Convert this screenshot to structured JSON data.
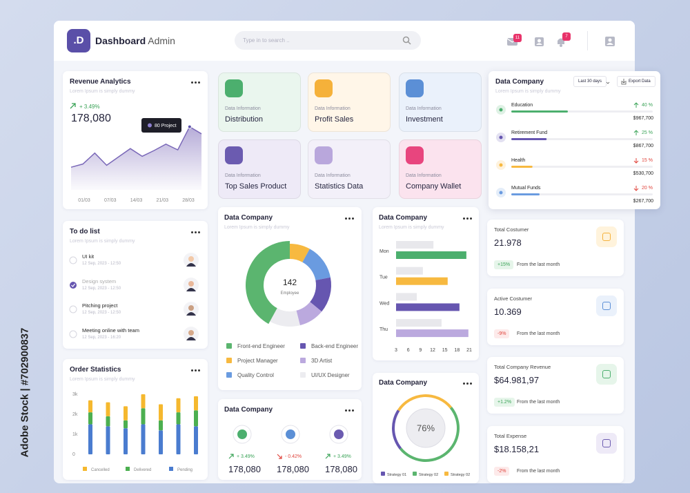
{
  "watermark": "Adobe Stock | #702900837",
  "header": {
    "logo": ".D",
    "title_bold": "Dashboard",
    "title_rest": "Admin",
    "search_placeholder": "Type in to search ..",
    "mail_badge": "11",
    "bell_badge": "7"
  },
  "revenue": {
    "type": "line",
    "title": "Revenue Analytics",
    "subtitle": "Lorem Ipsum is simply dummy",
    "change": "+ 3.49%",
    "value": "178,080",
    "tooltip": "80 Project",
    "categories": [
      "01/03",
      "07/03",
      "14/03",
      "21/03",
      "28/03"
    ],
    "values": [
      31,
      36,
      53,
      34,
      47,
      60,
      48,
      57,
      67,
      58,
      94,
      83
    ],
    "ylim": [
      0,
      100
    ],
    "color": "#7a68b8"
  },
  "tiles": [
    {
      "label": "Data Information",
      "name": "Distribution",
      "color": "#4caf6e",
      "bg": "#eaf6ee"
    },
    {
      "label": "Data Information",
      "name": "Profit Sales",
      "color": "#f5b13a",
      "bg": "#fff6e8"
    },
    {
      "label": "Data Information",
      "name": "Investment",
      "color": "#5b8fd6",
      "bg": "#eaf1fb"
    },
    {
      "label": "Data Information",
      "name": "Top Sales Product",
      "color": "#6b5bb0",
      "bg": "#eeeaf7"
    },
    {
      "label": "Data Information",
      "name": "Statistics Data",
      "color": "#b9a7dc",
      "bg": "#f3f0f9"
    },
    {
      "label": "Data Information",
      "name": "Company Wallet",
      "color": "#e8457e",
      "bg": "#fbe3ee"
    }
  ],
  "todo": {
    "title": "To do list",
    "subtitle": "Lorem Ipsum is simply dummy",
    "items": [
      {
        "title": "UI kit",
        "date": "12 Sep, 2023 - 12:50",
        "done": false
      },
      {
        "title": "Design system",
        "date": "12 Sep, 2023 - 12:50",
        "done": true
      },
      {
        "title": "Pitching project",
        "date": "12 Sep, 2023 - 12:50",
        "done": false
      },
      {
        "title": "Meeting online with team",
        "date": "12 Sep, 2023 - 16:20",
        "done": false
      }
    ]
  },
  "orders": {
    "type": "bar",
    "stacked": true,
    "title": "Order Statistics",
    "subtitle": "Lorem Ipsum is simply dummy",
    "ylim": [
      0,
      3000
    ],
    "yticks": [
      0,
      {
        "value": 1000,
        "label": "1k"
      },
      {
        "value": 2000,
        "label": "2k"
      },
      {
        "value": 3000,
        "label": "3k"
      }
    ],
    "series": [
      {
        "name": "Pending",
        "color": "#4a7ccf",
        "values": [
          1500,
          1400,
          1300,
          1500,
          1200,
          1500,
          1400
        ]
      },
      {
        "name": "Delivered",
        "color": "#4caf50",
        "values": [
          600,
          500,
          400,
          800,
          500,
          600,
          800
        ]
      },
      {
        "name": "Cancelled",
        "color": "#f5b82e",
        "values": [
          600,
          700,
          700,
          700,
          800,
          700,
          700
        ]
      }
    ]
  },
  "employees": {
    "type": "pie",
    "title": "Data Company",
    "subtitle": "Lorem Ipsum is simply dummy",
    "center_value": "142",
    "center_label": "Employee",
    "categories": [
      "Project Manager",
      "Quality Control",
      "Back-end Engineer",
      "3D Artist",
      "UI/UX Designer",
      "Front-end Engineer"
    ],
    "values": [
      8,
      14,
      14,
      10,
      12,
      42
    ],
    "colors": [
      "#f7b940",
      "#6a9be0",
      "#6656b0",
      "#bba9de",
      "#ececf0",
      "#5bb56f"
    ]
  },
  "weekly": {
    "type": "barh",
    "title": "Data Company",
    "subtitle": "Lorem Ipsum is simply dummy",
    "categories": [
      "Mon",
      "Tue",
      "Wed",
      "Thu"
    ],
    "compare_values": [
      12.2,
      9.6,
      8.1,
      14.2
    ],
    "compare_color": "#e8e8ec",
    "values": [
      20.3,
      15.7,
      18.6,
      20.8
    ],
    "colors": [
      "#4caf6e",
      "#f7b940",
      "#6656b0",
      "#bba9de"
    ],
    "xlim": [
      3,
      21
    ],
    "xticks": [
      3,
      6,
      9,
      12,
      15,
      18,
      21
    ]
  },
  "finance": {
    "type": "progress",
    "title": "Data Company",
    "subtitle": "Lorem Ipsum is simply dummy",
    "period": "Last 30 days",
    "export": "Export Data",
    "categories": [
      "Education",
      "Retirement Fund",
      "Health",
      "Mutual Funds"
    ],
    "values": [
      40,
      25,
      15,
      20
    ],
    "value_labels": [
      "40 %",
      "25 %",
      "15 %",
      "20 %"
    ],
    "xlim": [
      0,
      100
    ],
    "amounts": [
      "$967,700",
      "$867,700",
      "$530,700",
      "$267,700"
    ],
    "trend": [
      "up",
      "up",
      "down",
      "down"
    ],
    "colors": [
      "#4caf6e",
      "#6656b0",
      "#f7b940",
      "#6a9be0"
    ]
  },
  "stats": [
    {
      "title": "Total Costumer",
      "value": "21.978",
      "change": "+15%",
      "trend": "up",
      "note": "From the last month",
      "color": "#f5b13a",
      "bg": "#fff3dc"
    },
    {
      "title": "Active Costumer",
      "value": "10.369",
      "change": "-9%",
      "trend": "down",
      "note": "From the last month",
      "color": "#5b8fd6",
      "bg": "#eaf1fb"
    },
    {
      "title": "Total Company Revenue",
      "value": "$64.981,97",
      "change": "+1.2%",
      "trend": "up",
      "note": "From the last month",
      "color": "#4caf6e",
      "bg": "#e6f5ea"
    },
    {
      "title": "Total Expense",
      "value": "$18.158,21",
      "change": "-2%",
      "trend": "down",
      "note": "From the last month",
      "color": "#6b5bb0",
      "bg": "#eeeaf7"
    }
  ],
  "mini": {
    "title": "Data Company",
    "items": [
      {
        "change": "+ 3.49%",
        "trend": "up",
        "value": "178,080",
        "color": "#4caf6e"
      },
      {
        "change": "- 0.42%",
        "trend": "down",
        "value": "178,080",
        "color": "#5b8fd6"
      },
      {
        "change": "+ 3.49%",
        "trend": "up",
        "value": "178,080",
        "color": "#6b5bb0"
      }
    ]
  },
  "strategy": {
    "type": "pie",
    "title": "Data Company",
    "center_label": "76%",
    "categories": [
      "Strategy 01",
      "Strategy 02",
      "Strategy 02"
    ],
    "values": [
      20,
      50,
      30
    ],
    "colors": [
      "#6656b0",
      "#5bb56f",
      "#f7b940"
    ]
  }
}
